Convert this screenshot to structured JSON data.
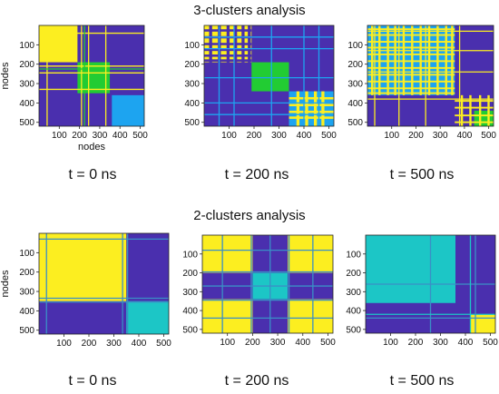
{
  "sections": [
    {
      "title": "3-clusters analysis",
      "times": [
        "t = 0 ns",
        "t = 200 ns",
        "t = 500 ns"
      ]
    },
    {
      "title": "2-clusters analysis",
      "times": [
        "t = 0 ns",
        "t = 200 ns",
        "t = 500 ns"
      ]
    }
  ],
  "colors": {
    "background_cluster": "#4a2fae",
    "yellow": "#fcee20",
    "green": "#22cc33",
    "light_blue": "#1da4f0",
    "cyan": "#1cc6c6",
    "line": "#3a8fc6"
  },
  "chart_data": [
    {
      "type": "heatmap",
      "title": "",
      "xlabel": "nodes",
      "ylabel": "nodes",
      "xlim": [
        0,
        520
      ],
      "ylim": [
        0,
        520
      ],
      "xticks": [
        100,
        200,
        300,
        400,
        500
      ],
      "yticks": [
        100,
        200,
        300,
        400,
        500
      ],
      "background": "#4a2fae",
      "blocks": [
        {
          "x0": 0,
          "x1": 190,
          "y0": 0,
          "y1": 190,
          "color": "#fcee20"
        },
        {
          "x0": 190,
          "x1": 350,
          "y0": 190,
          "y1": 350,
          "color": "#22cc33"
        },
        {
          "x0": 360,
          "x1": 520,
          "y0": 360,
          "y1": 520,
          "color": "#1da4f0"
        }
      ],
      "lines": [
        {
          "pos": 40,
          "color": "#fcee20"
        },
        {
          "pos": 210,
          "color": "#fcee20"
        },
        {
          "pos": 225,
          "color": "#22cc33"
        },
        {
          "pos": 245,
          "color": "#fcee20"
        },
        {
          "pos": 330,
          "color": "#fcee20"
        }
      ]
    },
    {
      "type": "heatmap",
      "title": "",
      "xlabel": "",
      "ylabel": "",
      "xlim": [
        0,
        520
      ],
      "ylim": [
        0,
        520
      ],
      "xticks": [
        100,
        200,
        300,
        400,
        500
      ],
      "yticks": [
        100,
        200,
        300,
        400,
        500
      ],
      "background": "#4a2fae",
      "blocks": [
        {
          "x0": 0,
          "x1": 190,
          "y0": 0,
          "y1": 190,
          "color": "#fcee20"
        },
        {
          "x0": 190,
          "x1": 340,
          "y0": 190,
          "y1": 340,
          "color": "#22cc33"
        },
        {
          "x0": 340,
          "x1": 520,
          "y0": 340,
          "y1": 520,
          "color": "#1da4f0"
        }
      ],
      "stripes": [
        {
          "x0": 0,
          "x1": 190,
          "positions": [
            20,
            55,
            90,
            120,
            150,
            175
          ],
          "width": 12,
          "color": "#4a2fae"
        },
        {
          "x0": 340,
          "x1": 520,
          "positions": [
            370,
            405,
            440,
            470
          ],
          "width": 12,
          "color": "#fcee20"
        }
      ],
      "lines": [
        {
          "pos": 60,
          "color": "#1da4f0"
        },
        {
          "pos": 120,
          "color": "#1da4f0"
        },
        {
          "pos": 270,
          "color": "#1da4f0"
        },
        {
          "pos": 400,
          "color": "#1da4f0"
        },
        {
          "pos": 460,
          "color": "#1da4f0"
        }
      ]
    },
    {
      "type": "heatmap",
      "title": "",
      "xlabel": "",
      "ylabel": "",
      "xlim": [
        0,
        520
      ],
      "ylim": [
        0,
        520
      ],
      "xticks": [
        100,
        200,
        300,
        400,
        500
      ],
      "yticks": [
        100,
        200,
        300,
        400,
        500
      ],
      "background": "#4a2fae",
      "blocks": [
        {
          "x0": 0,
          "x1": 360,
          "y0": 0,
          "y1": 360,
          "color": "#1da4f0"
        },
        {
          "x0": 440,
          "x1": 520,
          "y0": 440,
          "y1": 520,
          "color": "#22cc33"
        }
      ],
      "stripes": [
        {
          "x0": 0,
          "x1": 360,
          "positions": [
            15,
            45,
            80,
            110,
            145,
            180,
            215,
            250,
            285,
            320,
            345
          ],
          "width": 9,
          "color": "#fcee20"
        },
        {
          "x0": 360,
          "x1": 520,
          "positions": [
            385,
            420,
            460,
            495
          ],
          "width": 9,
          "color": "#fcee20"
        }
      ],
      "lines": [
        {
          "pos": 30,
          "color": "#fcee20"
        },
        {
          "pos": 130,
          "color": "#fcee20"
        },
        {
          "pos": 240,
          "color": "#fcee20"
        },
        {
          "pos": 380,
          "color": "#fcee20"
        }
      ]
    },
    {
      "type": "heatmap",
      "title": "",
      "xlabel": "",
      "ylabel": "nodes",
      "xlim": [
        0,
        520
      ],
      "ylim": [
        0,
        520
      ],
      "xticks": [
        100,
        200,
        300,
        400,
        500
      ],
      "yticks": [
        100,
        200,
        300,
        400,
        500
      ],
      "background": "#4a2fae",
      "blocks": [
        {
          "x0": 0,
          "x1": 350,
          "y0": 0,
          "y1": 350,
          "color": "#fcee20"
        },
        {
          "x0": 350,
          "x1": 520,
          "y0": 350,
          "y1": 520,
          "color": "#1cc6c6"
        }
      ],
      "lines": [
        {
          "pos": 30,
          "color": "#3a8fc6"
        },
        {
          "pos": 335,
          "color": "#3a8fc6"
        },
        {
          "pos": 355,
          "color": "#3a8fc6"
        }
      ]
    },
    {
      "type": "heatmap",
      "title": "",
      "xlabel": "",
      "ylabel": "",
      "xlim": [
        0,
        520
      ],
      "ylim": [
        0,
        520
      ],
      "xticks": [
        100,
        200,
        300,
        400,
        500
      ],
      "yticks": [
        100,
        200,
        300,
        400,
        500
      ],
      "background": "#4a2fae",
      "blocks": [
        {
          "x0": 0,
          "x1": 200,
          "y0": 0,
          "y1": 200,
          "color": "#fcee20"
        },
        {
          "x0": 340,
          "x1": 520,
          "y0": 0,
          "y1": 200,
          "color": "#fcee20"
        },
        {
          "x0": 0,
          "x1": 200,
          "y0": 340,
          "y1": 520,
          "color": "#fcee20"
        },
        {
          "x0": 340,
          "x1": 520,
          "y0": 340,
          "y1": 520,
          "color": "#fcee20"
        },
        {
          "x0": 200,
          "x1": 340,
          "y0": 200,
          "y1": 340,
          "color": "#1cc6c6"
        }
      ],
      "lines": [
        {
          "pos": 80,
          "color": "#3a8fc6"
        },
        {
          "pos": 195,
          "color": "#3a8fc6"
        },
        {
          "pos": 270,
          "color": "#3a8fc6"
        },
        {
          "pos": 345,
          "color": "#3a8fc6"
        },
        {
          "pos": 440,
          "color": "#3a8fc6"
        }
      ]
    },
    {
      "type": "heatmap",
      "title": "",
      "xlabel": "",
      "ylabel": "",
      "xlim": [
        0,
        520
      ],
      "ylim": [
        0,
        520
      ],
      "xticks": [
        100,
        200,
        300,
        400,
        500
      ],
      "yticks": [
        100,
        200,
        300,
        400,
        500
      ],
      "background": "#4a2fae",
      "blocks": [
        {
          "x0": 0,
          "x1": 360,
          "y0": 0,
          "y1": 360,
          "color": "#1cc6c6"
        },
        {
          "x0": 420,
          "x1": 520,
          "y0": 420,
          "y1": 520,
          "color": "#fcee20"
        }
      ],
      "lines": [
        {
          "pos": 260,
          "color": "#3a8fc6"
        },
        {
          "pos": 420,
          "color": "#1cc6c6"
        },
        {
          "pos": 440,
          "color": "#3a8fc6"
        }
      ]
    }
  ]
}
